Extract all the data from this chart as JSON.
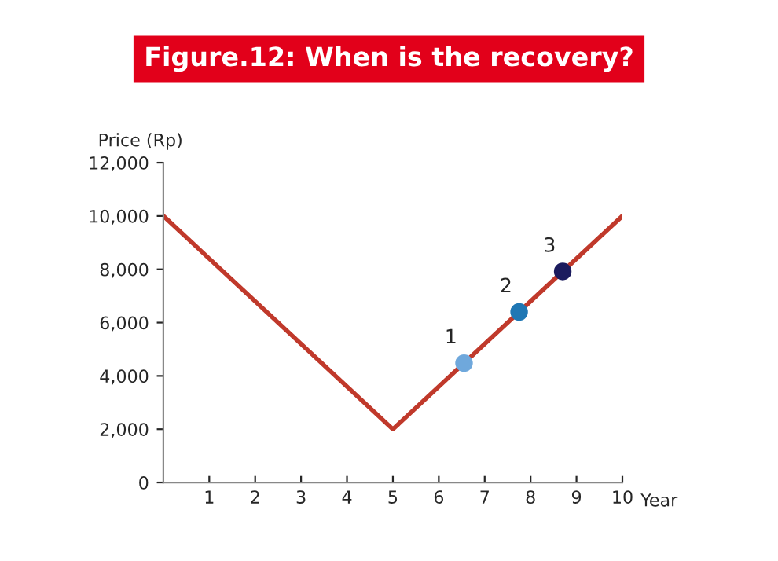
{
  "chart_data": {
    "type": "line",
    "title": "Figure.12: When is the recovery?",
    "xlabel": "Year",
    "ylabel": "Price (Rp)",
    "series": [
      {
        "color": "#c0392b",
        "marker": "none",
        "x": [
          0,
          5,
          10
        ],
        "values": [
          10000,
          2000,
          10000
        ]
      },
      {
        "type": "scatter",
        "marker": "circle",
        "x": [
          6.55,
          7.75,
          8.7
        ],
        "values": [
          4480,
          6400,
          7920
        ],
        "colors": [
          "#6fa8dc",
          "#1f77b4",
          "#1b1b5e"
        ]
      }
    ],
    "annotations": [
      {
        "text": "1",
        "x": 6.55,
        "y": 4480
      },
      {
        "text": "2",
        "x": 7.75,
        "y": 6400
      },
      {
        "text": "3",
        "x": 8.7,
        "y": 7920
      }
    ],
    "xlim": [
      0,
      10
    ],
    "xticks": [
      1,
      2,
      3,
      4,
      5,
      6,
      7,
      8,
      9,
      10
    ],
    "ylim": [
      0,
      12000
    ],
    "yticks": [
      {
        "value": 0,
        "label": "0"
      },
      {
        "value": 2000,
        "label": "2,000"
      },
      {
        "value": 4000,
        "label": "4,000"
      },
      {
        "value": 6000,
        "label": "6,000"
      },
      {
        "value": 8000,
        "label": "8,000"
      },
      {
        "value": 10000,
        "label": "10,000"
      },
      {
        "value": 12000,
        "label": "12,000"
      }
    ],
    "grid": false,
    "legend": false,
    "line_style": "solid"
  }
}
